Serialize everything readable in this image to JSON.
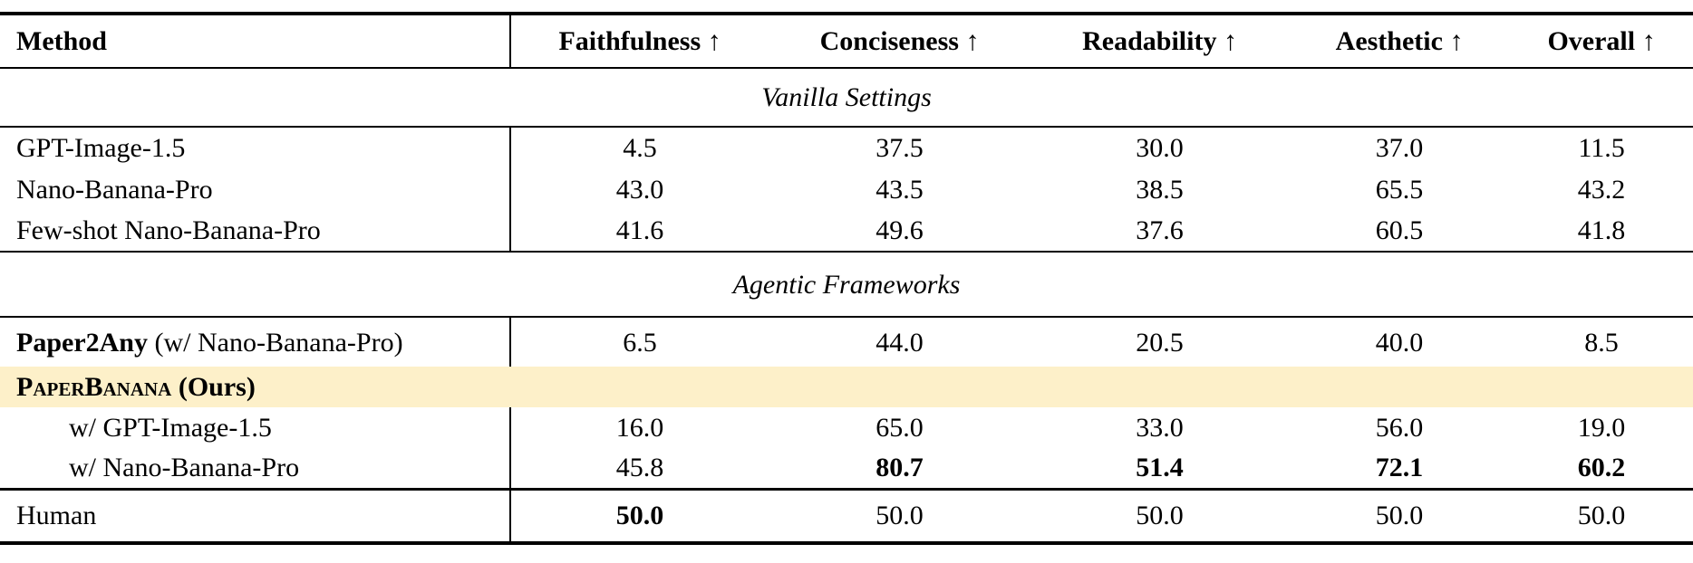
{
  "columns": [
    {
      "label": "Method"
    },
    {
      "label": "Faithfulness ↑"
    },
    {
      "label": "Conciseness ↑"
    },
    {
      "label": "Readability ↑"
    },
    {
      "label": "Aesthetic ↑"
    },
    {
      "label": "Overall ↑"
    }
  ],
  "sections": {
    "vanilla": {
      "label": "Vanilla Settings"
    },
    "agentic": {
      "label": "Agentic Frameworks"
    }
  },
  "rows": {
    "gpt_image": {
      "label": "GPT-Image-1.5",
      "values": [
        "4.5",
        "37.5",
        "30.0",
        "37.0",
        "11.5"
      ]
    },
    "nano_banana": {
      "label": "Nano-Banana-Pro",
      "values": [
        "43.0",
        "43.5",
        "38.5",
        "65.5",
        "43.2"
      ]
    },
    "few_shot": {
      "label": "Few-shot Nano-Banana-Pro",
      "values": [
        "41.6",
        "49.6",
        "37.6",
        "60.5",
        "41.8"
      ]
    },
    "paper2any": {
      "label_bold": "Paper2Any",
      "label_suffix": " (w/ Nano-Banana-Pro)",
      "values": [
        "6.5",
        "44.0",
        "20.5",
        "40.0",
        "8.5"
      ]
    },
    "paperbanana": {
      "label_smallcaps": "PaperBanana",
      "label_suffix": " (Ours)"
    },
    "ours_gpt": {
      "label": "w/ GPT-Image-1.5",
      "values": [
        "16.0",
        "65.0",
        "33.0",
        "56.0",
        "19.0"
      ]
    },
    "ours_nano": {
      "label": "w/ Nano-Banana-Pro",
      "values": [
        "45.8",
        "80.7",
        "51.4",
        "72.1",
        "60.2"
      ]
    },
    "human": {
      "label": "Human",
      "values": [
        "50.0",
        "50.0",
        "50.0",
        "50.0",
        "50.0"
      ]
    }
  },
  "colors": {
    "highlight_row": "#FDF0C9",
    "text": "#000000",
    "rules": "#000000",
    "background": "#FFFFFF"
  }
}
